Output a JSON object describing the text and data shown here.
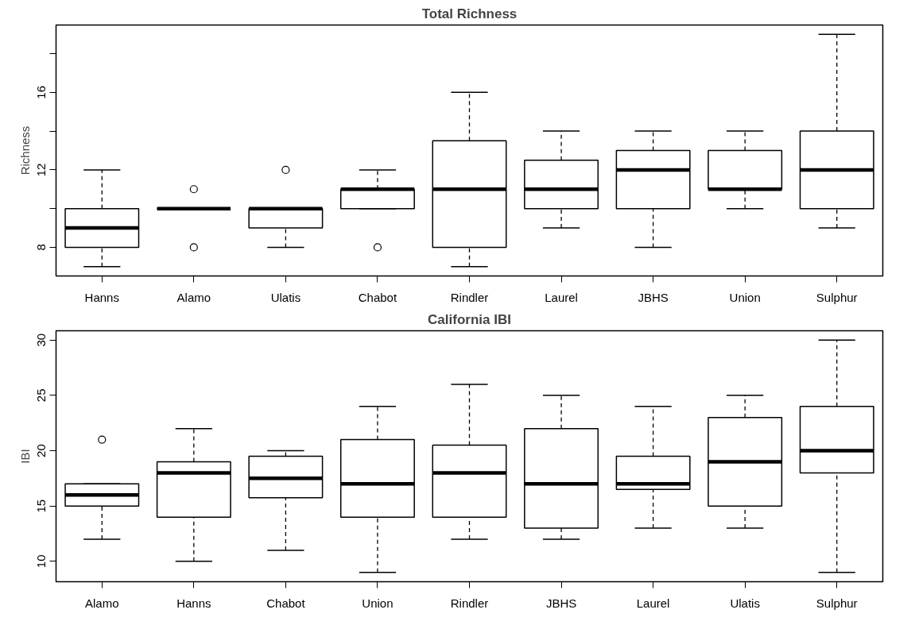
{
  "chart_data": [
    {
      "type": "box",
      "title": "Total Richness",
      "ylabel": "Richness",
      "categories": [
        "Hanns",
        "Alamo",
        "Ulatis",
        "Chabot",
        "Rindler",
        "Laurel",
        "JBHS",
        "Union",
        "Sulphur"
      ],
      "boxes": [
        {
          "low": 7,
          "q1": 8,
          "median": 9,
          "q3": 10,
          "high": 12
        },
        {
          "low": 10,
          "q1": 10,
          "median": 10,
          "q3": 10,
          "high": 10,
          "outliers": [
            11,
            8
          ]
        },
        {
          "low": 8,
          "q1": 9,
          "median": 10,
          "q3": 10,
          "high": 10,
          "outliers": [
            12
          ]
        },
        {
          "low": 10,
          "q1": 10,
          "median": 11,
          "q3": 11,
          "high": 12,
          "outliers": [
            8
          ]
        },
        {
          "low": 7,
          "q1": 8,
          "median": 11,
          "q3": 13.5,
          "high": 16
        },
        {
          "low": 9,
          "q1": 10,
          "median": 11,
          "q3": 12.5,
          "high": 14
        },
        {
          "low": 8,
          "q1": 10,
          "median": 12,
          "q3": 13,
          "high": 14
        },
        {
          "low": 10,
          "q1": 11,
          "median": 11,
          "q3": 13,
          "high": 14
        },
        {
          "low": 9,
          "q1": 10,
          "median": 12,
          "q3": 14,
          "high": 19
        }
      ],
      "ylim": [
        6.52,
        19.48
      ],
      "yticks": [
        8,
        {
          "value": 10,
          "label": null
        },
        12,
        {
          "value": 14,
          "label": null
        },
        16,
        {
          "value": 18,
          "label": null
        }
      ]
    },
    {
      "type": "box",
      "title": "California IBI",
      "ylabel": "IBI",
      "categories": [
        "Alamo",
        "Hanns",
        "Chabot",
        "Union",
        "Rindler",
        "JBHS",
        "Laurel",
        "Ulatis",
        "Sulphur"
      ],
      "boxes": [
        {
          "low": 12,
          "q1": 15,
          "median": 16,
          "q3": 17,
          "high": 17,
          "outliers": [
            21
          ]
        },
        {
          "low": 10,
          "q1": 14,
          "median": 18,
          "q3": 19,
          "high": 22
        },
        {
          "low": 11,
          "q1": 15.75,
          "median": 17.5,
          "q3": 19.5,
          "high": 20
        },
        {
          "low": 9,
          "q1": 14,
          "median": 17,
          "q3": 21,
          "high": 24
        },
        {
          "low": 12,
          "q1": 14,
          "median": 18,
          "q3": 20.5,
          "high": 26
        },
        {
          "low": 12,
          "q1": 13,
          "median": 17,
          "q3": 22,
          "high": 25
        },
        {
          "low": 13,
          "q1": 16.5,
          "median": 17,
          "q3": 19.5,
          "high": 24
        },
        {
          "low": 13,
          "q1": 15,
          "median": 19,
          "q3": 23,
          "high": 25
        },
        {
          "low": 9,
          "q1": 18,
          "median": 20,
          "q3": 24,
          "high": 30
        }
      ],
      "ylim": [
        8.16,
        30.84
      ],
      "yticks": [
        10,
        15,
        20,
        25,
        30
      ]
    }
  ]
}
